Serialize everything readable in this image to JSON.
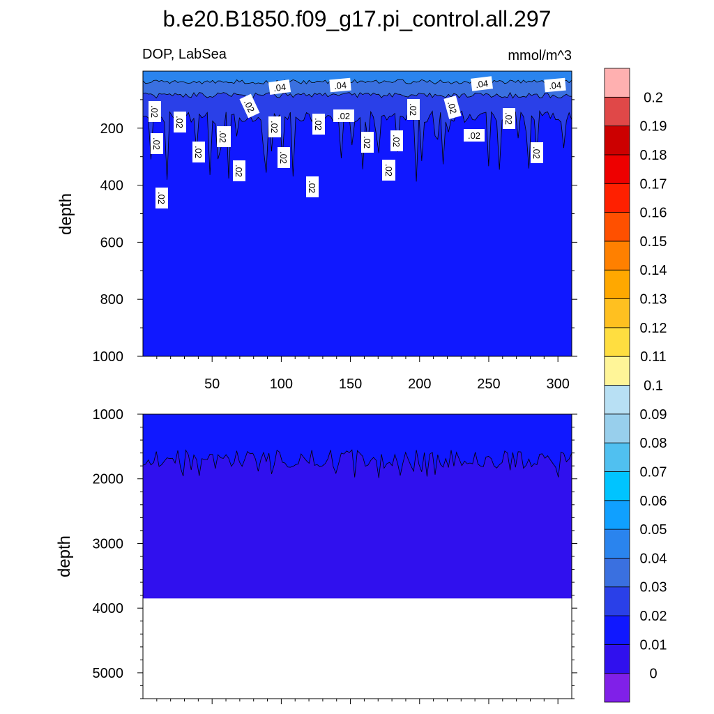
{
  "chart_data": {
    "type": "contour",
    "title": "b.e20.B1850.f09_g17.pi_control.all.297",
    "variable": "DOP, LabSea",
    "units": "mmol/m^3",
    "x_range": [
      0,
      310
    ],
    "x_ticks": [
      "50",
      "100",
      "150",
      "200",
      "250",
      "300"
    ],
    "top_panel": {
      "ylabel": "depth",
      "ylim": [
        0,
        1000
      ],
      "y_ticks": [
        "200",
        "400",
        "600",
        "800",
        "1000"
      ],
      "contour_labels": [
        ".04",
        ".04",
        ".04",
        ".04",
        ".02",
        ".02",
        ".02",
        ".02",
        ".02",
        ".02",
        ".02",
        ".02",
        ".02",
        ".02",
        ".02",
        ".02",
        ".02",
        ".02",
        ".02",
        ".02",
        ".02",
        ".02",
        ".02",
        ".02",
        ".02",
        ".02",
        ".02"
      ]
    },
    "bottom_panel": {
      "ylabel": "depth",
      "ylim": [
        1000,
        5400
      ],
      "y_ticks": [
        "1000",
        "2000",
        "3000",
        "4000",
        "5000"
      ],
      "ocean_floor_depth": 3850
    },
    "colorbar": {
      "levels": [
        "0",
        "0.01",
        "0.02",
        "0.03",
        "0.04",
        "0.05",
        "0.06",
        "0.07",
        "0.08",
        "0.09",
        "0.1",
        "0.11",
        "0.12",
        "0.13",
        "0.14",
        "0.15",
        "0.16",
        "0.17",
        "0.18",
        "0.19",
        "0.2"
      ],
      "colors": [
        "#8020e8",
        "#3010ee",
        "#1018ff",
        "#2a40e8",
        "#3a70e0",
        "#2a84ee",
        "#10a0ff",
        "#00c4ff",
        "#50c0f0",
        "#98cfec",
        "#b8e0f4",
        "#fff598",
        "#ffde40",
        "#ffc020",
        "#ffa800",
        "#ff8000",
        "#ff5000",
        "#ff2000",
        "#ee0000",
        "#cc0000",
        "#e04848",
        "#ffb0b0"
      ]
    }
  }
}
